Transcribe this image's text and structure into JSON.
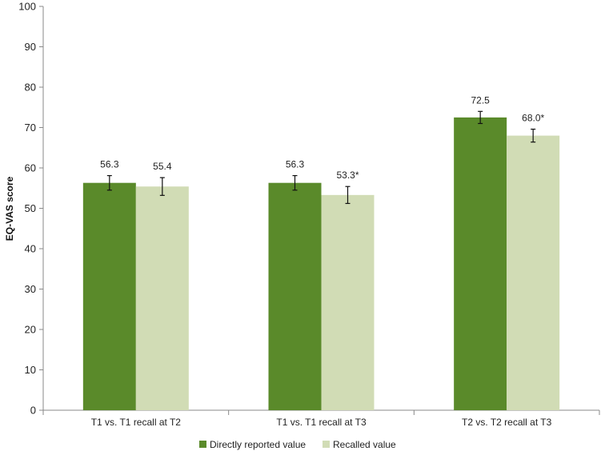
{
  "chart_data": {
    "type": "bar",
    "title": "",
    "xlabel": "",
    "ylabel": "EQ-VAS score",
    "ylim": [
      0,
      100
    ],
    "yticks": [
      0,
      10,
      20,
      30,
      40,
      50,
      60,
      70,
      80,
      90,
      100
    ],
    "grid": false,
    "legend_position": "bottom",
    "categories": [
      "T1 vs. T1 recall at T2",
      "T1 vs. T1 recall at T3",
      "T2 vs. T2 recall at T3"
    ],
    "series": [
      {
        "name": "Directly reported value",
        "color": "#5a8a2a",
        "values": [
          56.3,
          56.3,
          72.5
        ],
        "error": [
          1.8,
          1.8,
          1.5
        ],
        "labels": [
          "56.3",
          "56.3",
          "72.5"
        ]
      },
      {
        "name": "Recalled value",
        "color": "#d1dcb5",
        "values": [
          55.4,
          53.3,
          68.0
        ],
        "error": [
          2.2,
          2.1,
          1.6
        ],
        "labels": [
          "55.4",
          "53.3*",
          "68.0*"
        ]
      }
    ]
  }
}
